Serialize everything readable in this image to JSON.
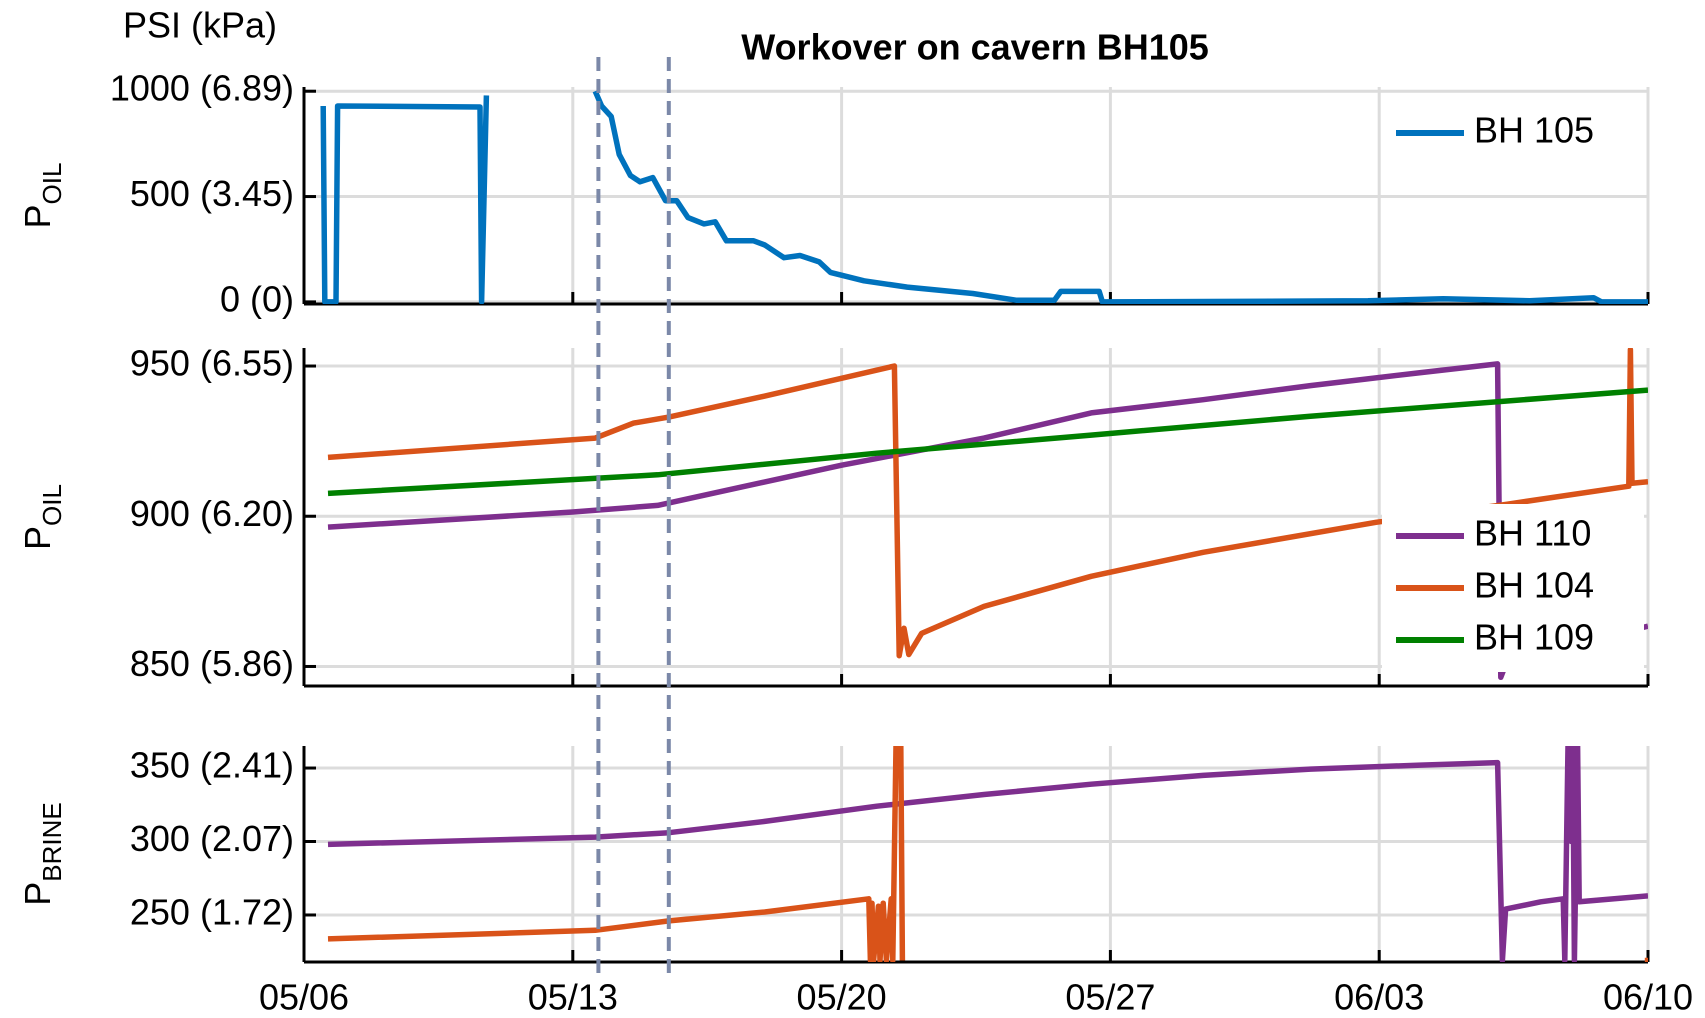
{
  "chart_data": {
    "type": "line",
    "title": "Workover on cavern BH105",
    "units_label": "PSI (kPa)",
    "xlim": [
      "05/06",
      "06/10"
    ],
    "xticks": [
      "05/06",
      "05/13",
      "05/20",
      "05/27",
      "06/03",
      "06/10"
    ],
    "vlines": [
      "05/13 16:00",
      "05/15 12:00"
    ],
    "grid": true,
    "panels": [
      {
        "ylabel": "P",
        "ylabel_sub": "OIL",
        "ylim": [
          -10,
          1020
        ],
        "yticks": [
          {
            "value": 0,
            "label": "0 (0)"
          },
          {
            "value": 500,
            "label": "500 (3.45)"
          },
          {
            "value": 1000,
            "label": "1000 (6.89)"
          }
        ],
        "legend": "northeast",
        "series": [
          {
            "name": "BH 105",
            "color": "#0072bd",
            "x": [
              "05/06 12:00",
              "05/06 13:00",
              "05/06 20:00",
              "05/06 21:00",
              "05/10 14:00",
              "05/10 15:00",
              "05/10 18:00",
              "05/12",
              "05/13 14:00",
              "05/13 18:00",
              "05/14",
              "05/14 05:00",
              "05/14 12:00",
              "05/14 18:00",
              "05/15 02:00",
              "05/15 10:00",
              "05/15 17:00",
              "05/16",
              "05/16 10:00",
              "05/16 17:00",
              "05/17",
              "05/17 17:00",
              "05/18",
              "05/18 12:00",
              "05/18 22:00",
              "05/19 10:00",
              "05/19 17:00",
              "05/20 14:00",
              "05/21 17:00",
              "05/23 10:00",
              "05/24 13:00",
              "05/25 13:00",
              "05/25 17:00",
              "05/26 17:00",
              "05/26 19:00",
              "06/02 17:00",
              "06/04 16:00",
              "06/06 22:00",
              "06/08 14:00",
              "06/08 19:00",
              "06/10"
            ],
            "values": [
              930,
              0,
              0,
              930,
              925,
              0,
              980,
              null,
              1000,
              930,
              880,
              700,
              600,
              570,
              590,
              480,
              480,
              400,
              370,
              380,
              290,
              290,
              270,
              210,
              220,
              190,
              140,
              100,
              70,
              40,
              8,
              8,
              50,
              50,
              0,
              5,
              15,
              5,
              20,
              0,
              0
            ]
          }
        ]
      },
      {
        "ylabel": "P",
        "ylabel_sub": "OIL",
        "ylim": [
          843.5,
          956
        ],
        "yticks": [
          {
            "value": 850,
            "label": "850 (5.86)"
          },
          {
            "value": 900,
            "label": "900 (6.20)"
          },
          {
            "value": 950,
            "label": "950 (6.55)"
          }
        ],
        "legend": "southeast",
        "series": [
          {
            "name": "BH 110",
            "color": "#7e2f8e",
            "x": [
              "05/06 15:00",
              "05/13",
              "05/15 05:00",
              "05/17 10:00",
              "05/20",
              "05/23 17:00",
              "05/26 12:00",
              "05/29 10:00",
              "06/01 05:00",
              "06/04 02:00",
              "06/06 02:00",
              "06/06 04:00",
              "06/06 08:00",
              "06/10"
            ],
            "values": [
              896.4,
              901.4,
              903.6,
              909.8,
              917,
              926,
              934.4,
              938.8,
              943.5,
              947.8,
              950.7,
              846.4,
              852,
              863.4
            ]
          },
          {
            "name": "BH 104",
            "color": "#d95319",
            "x": [
              "05/06 15:00",
              "05/13 14:00",
              "05/14 14:00",
              "05/15 12:00",
              "05/18",
              "05/21 09:00",
              "05/21 12:00",
              "05/21 15:00",
              "05/21 18:00",
              "05/22 02:00",
              "05/23 17:00",
              "05/26 12:00",
              "05/29 10:00",
              "06/02 22:00",
              "06/06 08:00",
              "06/09 12:00",
              "06/09 13:00",
              "06/09 14:00",
              "06/10"
            ],
            "values": [
              919.6,
              926,
              931,
              933,
              940,
              950,
              853.6,
              862.7,
              854,
              861,
              870,
              880,
              888,
              898,
              904,
              910,
              955.5,
              911,
              911.5
            ]
          },
          {
            "name": "BH 109",
            "color": "#008000",
            "x": [
              "05/06 15:00",
              "05/15 05:00",
              "05/20 22:00",
              "05/26 12:00",
              "06/01 05:00",
              "06/10"
            ],
            "values": [
              907.6,
              913.8,
              921,
              927,
              933.3,
              942
            ]
          }
        ]
      },
      {
        "ylabel": "P",
        "ylabel_sub": "BRINE",
        "ylim": [
          218,
          365
        ],
        "yticks": [
          {
            "value": 250,
            "label": "250 (1.72)"
          },
          {
            "value": 300,
            "label": "300 (2.07)"
          },
          {
            "value": 350,
            "label": "350 (2.41)"
          }
        ],
        "legend": "none",
        "series": [
          {
            "color": "#7e2f8e",
            "x": [
              "05/06 15:00",
              "05/13 14:00",
              "05/15 12:00",
              "05/18",
              "05/20 22:00",
              "05/23 17:00",
              "05/26 12:00",
              "05/29 10:00",
              "06/01 05:00",
              "06/04 02:00",
              "06/06 02:00",
              "06/06 05:00",
              "06/06 07:00",
              "06/07 05:00",
              "06/07 19:00",
              "06/07 20:00",
              "06/07 22:00",
              "06/08",
              "06/08 01:00",
              "06/08 02:00",
              "06/08 04:00",
              "06/08 05:00",
              "06/10"
            ],
            "values": [
              298,
              303,
              306,
              313.7,
              324,
              332,
              339,
              345,
              349.3,
              352,
              353.7,
              219,
              254,
              259,
              261,
              219,
              365,
              300,
              365,
              219,
              365,
              259,
              263
            ]
          },
          {
            "color": "#d95319",
            "x": [
              "05/06 15:00",
              "05/13 14:00",
              "05/15 12:00",
              "05/18",
              "05/20 17:00",
              "05/20 18:00",
              "05/20 19:00",
              "05/20 20:00",
              "05/20 23:00",
              "05/21",
              "05/21 02:00",
              "05/21 04:00",
              "05/21 07:00",
              "05/21 08:00",
              "05/21 10:00",
              "05/21 13:00",
              "05/21 14:00",
              "06/09 20:00",
              "06/09 22:00",
              "06/10"
            ],
            "values": [
              233.7,
              239.6,
              246,
              252,
              261,
              219,
              258,
              219,
              256,
              219,
              258,
              219,
              261,
              219,
              365,
              365,
              219,
              null,
              219,
              219
            ]
          }
        ]
      }
    ]
  }
}
